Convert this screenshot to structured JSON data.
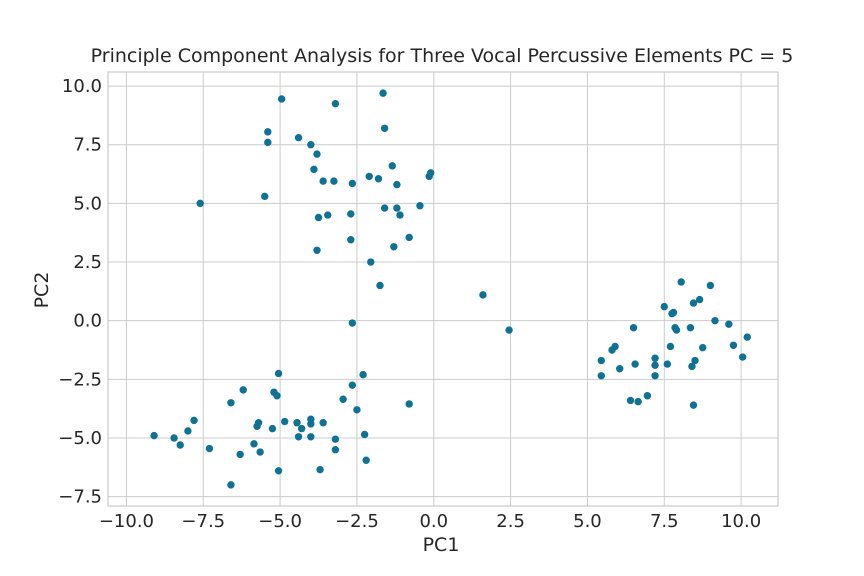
{
  "chart_data": {
    "type": "scatter",
    "title": "Principle Component Analysis for Three Vocal Percussive Elements PC = 5",
    "xlabel": "PC1",
    "ylabel": "PC2",
    "xlim": [
      -10.6,
      11.2
    ],
    "ylim": [
      -7.9,
      10.6
    ],
    "xticks": [
      -10,
      -7.5,
      -5,
      -2.5,
      0,
      2.5,
      5,
      7.5,
      10
    ],
    "yticks": [
      -7.5,
      -5,
      -2.5,
      0,
      2.5,
      5,
      7.5,
      10
    ],
    "xtick_labels": [
      "−10.0",
      "−7.5",
      "−5.0",
      "−2.5",
      "0.0",
      "2.5",
      "5.0",
      "7.5",
      "10.0"
    ],
    "ytick_labels": [
      "−7.5",
      "−5.0",
      "−2.5",
      "0.0",
      "2.5",
      "5.0",
      "7.5",
      "10.0"
    ],
    "grid": true,
    "marker_color": "#0f7193",
    "series": [
      {
        "points": [
          [
            -4.95,
            9.45
          ],
          [
            -3.2,
            9.25
          ],
          [
            -1.65,
            9.7
          ],
          [
            -5.4,
            8.05
          ],
          [
            -5.4,
            7.6
          ],
          [
            -4.4,
            7.8
          ],
          [
            -4.0,
            7.5
          ],
          [
            -3.8,
            7.1
          ],
          [
            -1.6,
            8.2
          ],
          [
            -3.9,
            6.45
          ],
          [
            -3.6,
            5.95
          ],
          [
            -3.25,
            5.95
          ],
          [
            -2.1,
            6.15
          ],
          [
            -1.8,
            6.05
          ],
          [
            -1.35,
            6.6
          ],
          [
            -0.15,
            6.15
          ],
          [
            -0.1,
            6.3
          ],
          [
            -2.65,
            5.85
          ],
          [
            -1.2,
            5.8
          ],
          [
            -5.5,
            5.3
          ],
          [
            -7.6,
            5.0
          ],
          [
            -1.6,
            4.8
          ],
          [
            -1.2,
            4.8
          ],
          [
            -0.45,
            4.9
          ],
          [
            -3.75,
            4.4
          ],
          [
            -3.45,
            4.5
          ],
          [
            -2.7,
            4.55
          ],
          [
            -1.1,
            4.5
          ],
          [
            -2.7,
            3.45
          ],
          [
            -1.3,
            3.15
          ],
          [
            -0.8,
            3.55
          ],
          [
            -3.8,
            3.0
          ],
          [
            -2.05,
            2.5
          ],
          [
            -1.75,
            1.5
          ],
          [
            -2.65,
            -0.1
          ]
        ]
      },
      {
        "points": [
          [
            -5.05,
            -2.25
          ],
          [
            -6.2,
            -2.95
          ],
          [
            -2.3,
            -2.3
          ],
          [
            -2.65,
            -2.75
          ],
          [
            -5.2,
            -3.05
          ],
          [
            -5.1,
            -3.2
          ],
          [
            -6.6,
            -3.5
          ],
          [
            -2.95,
            -3.35
          ],
          [
            -0.8,
            -3.55
          ],
          [
            -2.5,
            -3.8
          ],
          [
            -7.8,
            -4.25
          ],
          [
            -5.7,
            -4.35
          ],
          [
            -5.75,
            -4.5
          ],
          [
            -4.85,
            -4.3
          ],
          [
            -4.45,
            -4.35
          ],
          [
            -4.0,
            -4.2
          ],
          [
            -3.6,
            -4.35
          ],
          [
            -5.25,
            -4.6
          ],
          [
            -4.3,
            -4.6
          ],
          [
            -4.0,
            -4.4
          ],
          [
            -8.0,
            -4.7
          ],
          [
            -9.1,
            -4.9
          ],
          [
            -8.45,
            -5.0
          ],
          [
            -4.4,
            -4.95
          ],
          [
            -4.0,
            -4.95
          ],
          [
            -3.2,
            -5.05
          ],
          [
            -2.25,
            -4.85
          ],
          [
            -8.25,
            -5.3
          ],
          [
            -5.85,
            -5.25
          ],
          [
            -7.3,
            -5.45
          ],
          [
            -3.2,
            -5.5
          ],
          [
            -5.65,
            -5.6
          ],
          [
            -6.3,
            -5.7
          ],
          [
            -2.2,
            -5.95
          ],
          [
            -5.05,
            -6.4
          ],
          [
            -3.7,
            -6.35
          ],
          [
            -6.6,
            -7.0
          ]
        ]
      },
      {
        "points": [
          [
            1.6,
            1.1
          ],
          [
            2.45,
            -0.4
          ],
          [
            8.05,
            1.65
          ],
          [
            9.0,
            1.5
          ],
          [
            7.5,
            0.6
          ],
          [
            8.65,
            0.9
          ],
          [
            8.45,
            0.75
          ],
          [
            7.8,
            0.35
          ],
          [
            7.75,
            0.3
          ],
          [
            9.15,
            0.0
          ],
          [
            9.6,
            -0.15
          ],
          [
            7.85,
            -0.3
          ],
          [
            7.9,
            -0.4
          ],
          [
            8.35,
            -0.3
          ],
          [
            6.5,
            -0.3
          ],
          [
            10.2,
            -0.7
          ],
          [
            5.9,
            -1.1
          ],
          [
            5.8,
            -1.25
          ],
          [
            7.7,
            -1.1
          ],
          [
            8.75,
            -1.15
          ],
          [
            9.75,
            -1.05
          ],
          [
            10.05,
            -1.55
          ],
          [
            7.2,
            -1.6
          ],
          [
            5.45,
            -1.7
          ],
          [
            8.5,
            -1.7
          ],
          [
            6.55,
            -1.85
          ],
          [
            7.2,
            -1.9
          ],
          [
            7.6,
            -1.85
          ],
          [
            8.4,
            -1.95
          ],
          [
            6.05,
            -2.05
          ],
          [
            5.45,
            -2.35
          ],
          [
            7.2,
            -2.35
          ],
          [
            6.95,
            -3.2
          ],
          [
            6.4,
            -3.4
          ],
          [
            6.65,
            -3.45
          ],
          [
            8.45,
            -3.6
          ]
        ]
      }
    ]
  }
}
